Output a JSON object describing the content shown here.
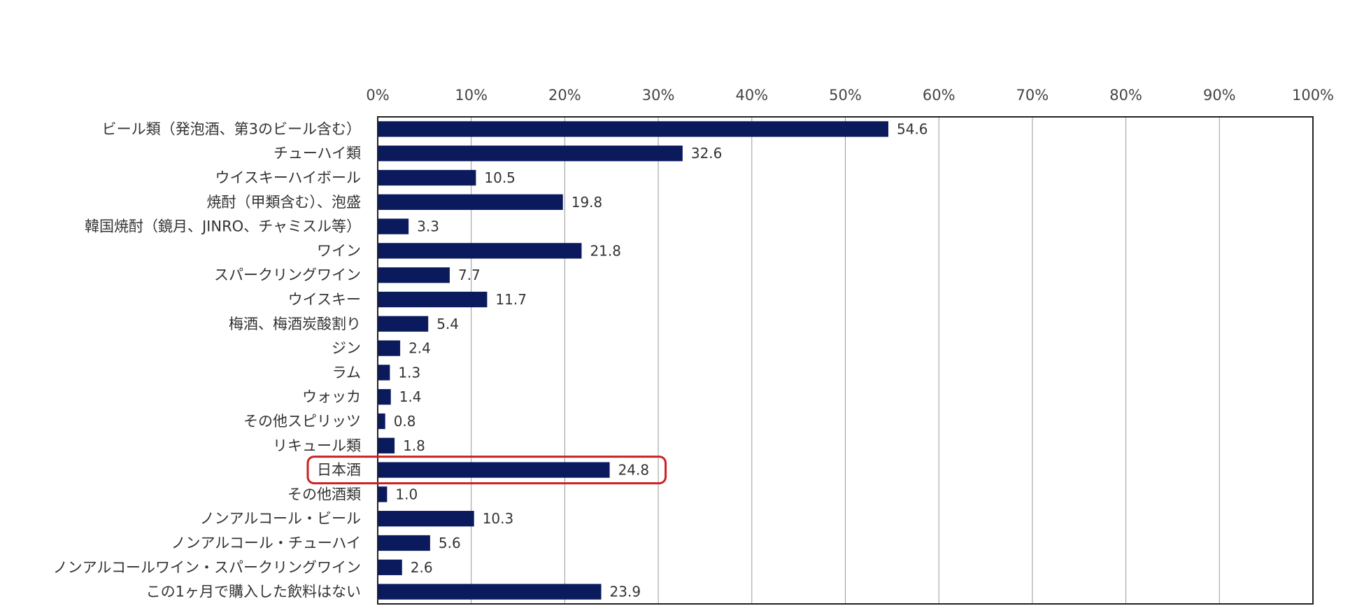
{
  "chart_data": {
    "type": "bar",
    "orientation": "horizontal",
    "title": "",
    "xlabel": "",
    "ylabel": "",
    "xlim": [
      0,
      100
    ],
    "grid": true,
    "ticks": [
      "0%",
      "10%",
      "20%",
      "30%",
      "40%",
      "50%",
      "60%",
      "70%",
      "80%",
      "90%",
      "100%"
    ],
    "categories": [
      "ビール類（発泡酒、第3のビール含む）",
      "チューハイ類",
      "ウイスキーハイボール",
      "焼酎（甲類含む）、泡盛",
      "韓国焼酎（鏡月、JINRO、チャミスル等）",
      "ワイン",
      "スパークリングワイン",
      "ウイスキー",
      "梅酒、梅酒炭酸割り",
      "ジン",
      "ラム",
      "ウォッカ",
      "その他スピリッツ",
      "リキュール類",
      "日本酒",
      "その他酒類",
      "ノンアルコール・ビール",
      "ノンアルコール・チューハイ",
      "ノンアルコールワイン・スパークリングワイン",
      "この1ヶ月で購入した飲料はない"
    ],
    "values": [
      54.6,
      32.6,
      10.5,
      19.8,
      3.3,
      21.8,
      7.7,
      11.7,
      5.4,
      2.4,
      1.3,
      1.4,
      0.8,
      1.8,
      24.8,
      1.0,
      10.3,
      5.6,
      2.6,
      23.9
    ],
    "value_labels": [
      "54.6",
      "32.6",
      "10.5",
      "19.8",
      "3.3",
      "21.8",
      "7.7",
      "11.7",
      "5.4",
      "2.4",
      "1.3",
      "1.4",
      "0.8",
      "1.8",
      "24.8",
      "1.0",
      "10.3",
      "5.6",
      "2.6",
      "23.9"
    ],
    "highlight_index": 14,
    "colors": {
      "bar": "#0a1a5c",
      "highlight": "#cc2222",
      "grid": "#999999",
      "frame": "#222222"
    }
  }
}
